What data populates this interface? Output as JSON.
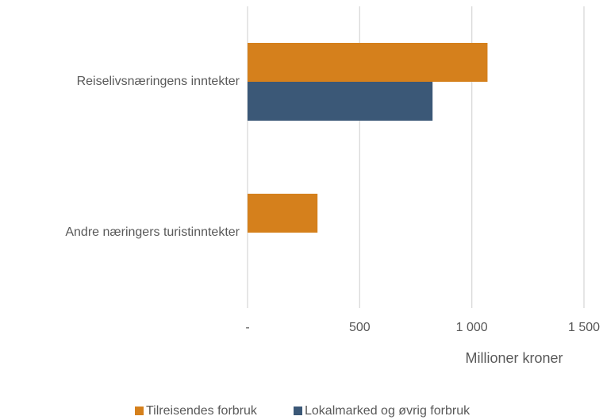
{
  "chart_data": {
    "type": "hbar",
    "categories": [
      "Reiselivsnæringens inntekter",
      "Andre næringers turistinntekter"
    ],
    "series": [
      {
        "name": "Tilreisendes forbruk",
        "color": "#d5801c",
        "values": [
          1070,
          312
        ]
      },
      {
        "name": "Lokalmarked og øvrig forbruk",
        "color": "#3b5877",
        "values": [
          825,
          0
        ]
      }
    ],
    "xlabel": "Millioner kroner",
    "xlim": [
      0,
      1500
    ],
    "xticks": [
      {
        "value": 0,
        "label": "-"
      },
      500,
      {
        "value": 1000,
        "label": "1 000"
      },
      {
        "value": 1500,
        "label": "1 500"
      }
    ],
    "grid": true,
    "legend": "bottom"
  }
}
